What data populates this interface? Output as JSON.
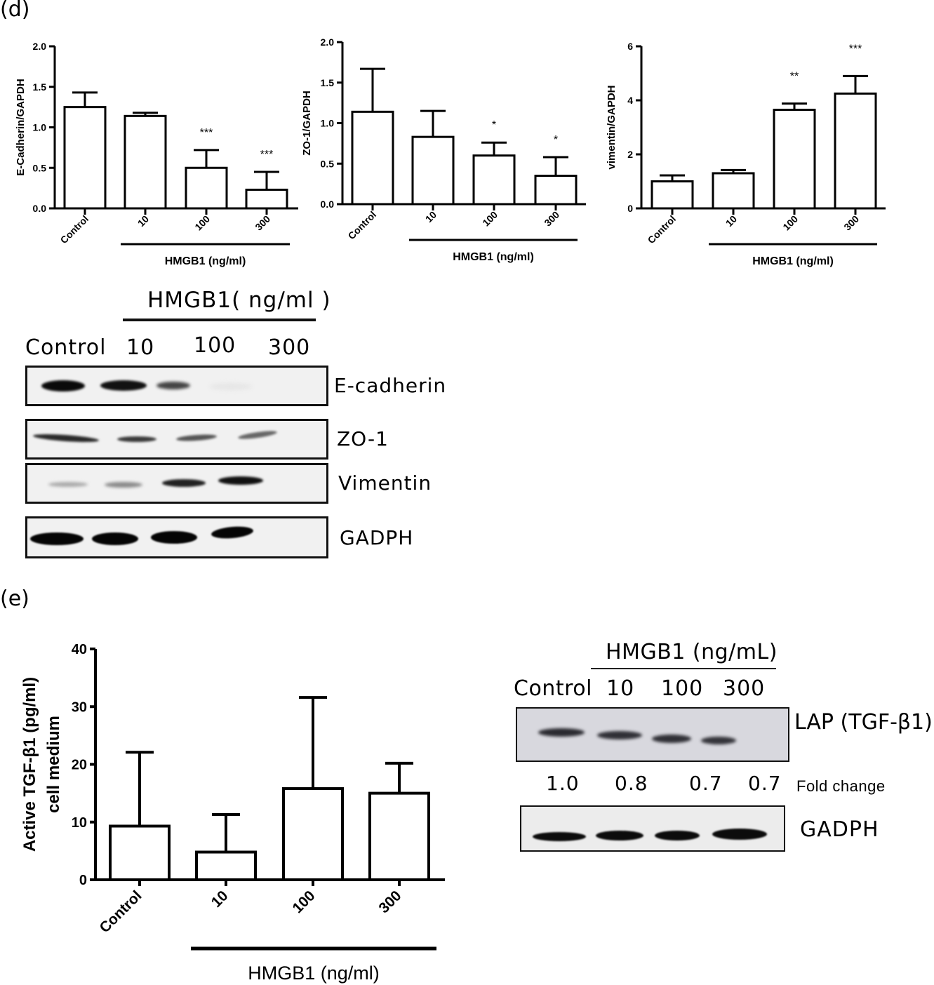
{
  "panels": {
    "d_label": "(d)",
    "e_label": "(e)"
  },
  "chart_data": [
    {
      "type": "bar",
      "id": "ecadherin",
      "title": "",
      "categories": [
        "Control",
        "10",
        "100",
        "300"
      ],
      "values": [
        1.25,
        1.14,
        0.5,
        0.23
      ],
      "error_upper": [
        1.43,
        1.18,
        0.72,
        0.45
      ],
      "significance": [
        "",
        "",
        "***",
        "***"
      ],
      "xlabel": "HMGB1 (ng/ml)",
      "ylabel": "E-Cadherin/GAPDH",
      "ylim": [
        0,
        2.0
      ],
      "yticks": [
        "0.0",
        "0.5",
        "1.0",
        "1.5",
        "2.0"
      ],
      "grid": false
    },
    {
      "type": "bar",
      "id": "zo1",
      "title": "",
      "categories": [
        "Control",
        "10",
        "100",
        "300"
      ],
      "values": [
        1.14,
        0.83,
        0.6,
        0.35
      ],
      "error_upper": [
        1.67,
        1.15,
        0.76,
        0.58
      ],
      "significance": [
        "",
        "",
        "*",
        "*"
      ],
      "xlabel": "HMGB1 (ng/ml)",
      "ylabel": "ZO-1/GAPDH",
      "ylim": [
        0,
        2.0
      ],
      "yticks": [
        "0.0",
        "0.5",
        "1.0",
        "1.5",
        "2.0"
      ],
      "grid": false
    },
    {
      "type": "bar",
      "id": "vimentin",
      "title": "",
      "categories": [
        "Control",
        "10",
        "100",
        "300"
      ],
      "values": [
        1.0,
        1.3,
        3.65,
        4.25
      ],
      "error_upper": [
        1.22,
        1.42,
        3.88,
        4.9
      ],
      "significance": [
        "",
        "",
        "**",
        "***"
      ],
      "xlabel": "HMGB1 (ng/ml)",
      "ylabel": "vimentin/GAPDH",
      "ylim": [
        0,
        6
      ],
      "yticks": [
        "0",
        "2",
        "4",
        "6"
      ],
      "grid": false
    },
    {
      "type": "bar",
      "id": "tgfb1",
      "title": "",
      "categories": [
        "Control",
        "10",
        "100",
        "300"
      ],
      "values": [
        9.3,
        4.8,
        15.8,
        15.0
      ],
      "error_upper": [
        22.1,
        11.3,
        31.6,
        20.2
      ],
      "significance": [
        "",
        "",
        "",
        ""
      ],
      "xlabel": "HMGB1 (ng/ml)",
      "ylabel": "Active TGF-β1 (pg/ml) cell medium",
      "ylabel_lines": [
        "Active TGF-β1 (pg/ml)",
        "cell medium"
      ],
      "ylim": [
        0,
        40
      ],
      "yticks": [
        "0",
        "10",
        "20",
        "30",
        "40"
      ],
      "grid": false
    },
    {
      "type": "table",
      "id": "lap_fold_change",
      "title": "LAP (TGF-β1) fold change",
      "categories": [
        "Control",
        "10",
        "100",
        "300"
      ],
      "values": [
        1.0,
        0.8,
        0.7,
        0.7
      ]
    }
  ],
  "blot_d": {
    "header": "HMGB1( ng/ml )",
    "lanes": [
      "Control",
      "10",
      "100",
      "300"
    ],
    "rows": [
      {
        "label": "E-cadherin",
        "intensity": [
          1.0,
          0.9,
          0.55,
          0.05
        ]
      },
      {
        "label": "ZO-1",
        "intensity": [
          0.7,
          0.6,
          0.5,
          0.45
        ]
      },
      {
        "label": "Vimentin",
        "intensity": [
          0.2,
          0.3,
          0.8,
          0.95
        ]
      },
      {
        "label": "GADPH",
        "intensity": [
          1.0,
          1.0,
          1.0,
          1.0
        ]
      }
    ]
  },
  "blot_e": {
    "header": "HMGB1 (ng/mL)",
    "lanes": [
      "Control",
      "10",
      "100",
      "300"
    ],
    "lap_label": "LAP (TGF-β1)",
    "fold_values": [
      "1.0",
      "0.8",
      "0.7",
      "0.7"
    ],
    "fold_label": "Fold change",
    "gapdh_label": "GADPH"
  }
}
